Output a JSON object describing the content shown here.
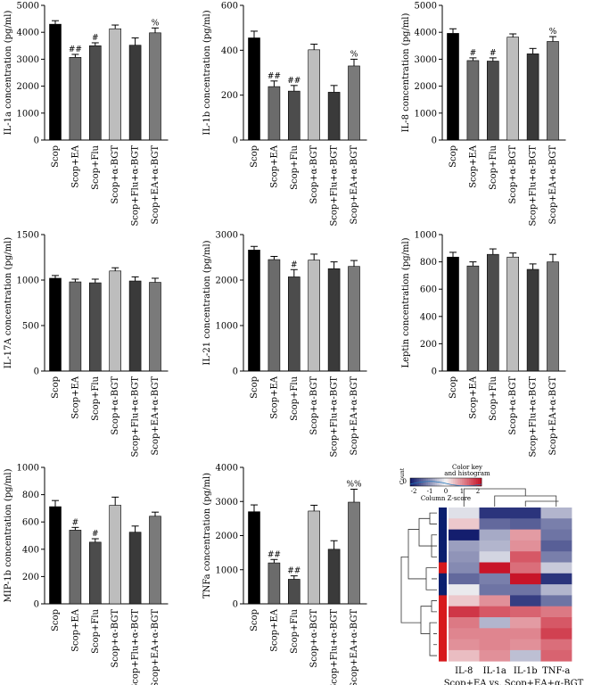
{
  "chart_data": [
    {
      "type": "bar",
      "ylabel": "IL-1a concentration (pg/ml)",
      "ylim": [
        0,
        5000
      ],
      "ticks": [
        0,
        1000,
        2000,
        3000,
        4000,
        5000
      ],
      "categories": [
        "Scop",
        "Scop+EA",
        "Scop+Flu",
        "Scop+α-BGT",
        "Scop+Flu+α-BGT",
        "Scop+EA+α-BGT"
      ],
      "values": [
        4300,
        3070,
        3500,
        4130,
        3520,
        3980
      ],
      "errors": [
        130,
        110,
        110,
        140,
        270,
        180
      ],
      "marks": [
        "",
        "##",
        "#",
        "",
        "",
        "%"
      ]
    },
    {
      "type": "bar",
      "ylabel": "IL-1b concentration (pg/ml)",
      "ylim": [
        0,
        600
      ],
      "ticks": [
        0,
        200,
        400,
        600
      ],
      "categories": [
        "Scop",
        "Scop+EA",
        "Scop+Flu",
        "Scop+α-BGT",
        "Scop+Flu+α-BGT",
        "Scop+EA+α-BGT"
      ],
      "values": [
        455,
        238,
        218,
        402,
        213,
        330
      ],
      "errors": [
        30,
        25,
        25,
        25,
        30,
        30
      ],
      "marks": [
        "",
        "##",
        "##",
        "",
        "",
        "%"
      ]
    },
    {
      "type": "bar",
      "ylabel": "IL-8 concentration (pg/ml)",
      "ylim": [
        0,
        5000
      ],
      "ticks": [
        0,
        1000,
        2000,
        3000,
        4000,
        5000
      ],
      "categories": [
        "Scop",
        "Scop+EA",
        "Scop+Flu",
        "Scop+α-BGT",
        "Scop+Flu+α-BGT",
        "Scop+EA+α-BGT"
      ],
      "values": [
        3960,
        2950,
        2930,
        3820,
        3200,
        3660
      ],
      "errors": [
        170,
        100,
        120,
        120,
        200,
        180
      ],
      "marks": [
        "",
        "#",
        "#",
        "",
        "",
        "%"
      ]
    },
    {
      "type": "bar",
      "ylabel": "IL-17A concentration (pg/ml)",
      "ylim": [
        0,
        1500
      ],
      "ticks": [
        0,
        500,
        1000,
        1500
      ],
      "categories": [
        "Scop",
        "Scop+EA",
        "Scop+Flu",
        "Scop+α-BGT",
        "Scop+Flu+α-BGT",
        "Scop+EA+α-BGT"
      ],
      "values": [
        1020,
        980,
        970,
        1100,
        990,
        975
      ],
      "errors": [
        30,
        30,
        40,
        35,
        45,
        45
      ],
      "marks": [
        "",
        "",
        "",
        "",
        "",
        ""
      ]
    },
    {
      "type": "bar",
      "ylabel": "IL-21 concentration (pg/ml)",
      "ylim": [
        0,
        3000
      ],
      "ticks": [
        0,
        1000,
        2000,
        3000
      ],
      "categories": [
        "Scop",
        "Scop+EA",
        "Scop+Flu",
        "Scop+α-BGT",
        "Scop+Flu+α-BGT",
        "Scop+EA+α-BGT"
      ],
      "values": [
        2660,
        2450,
        2070,
        2440,
        2250,
        2300
      ],
      "errors": [
        80,
        70,
        160,
        130,
        150,
        130
      ],
      "marks": [
        "",
        "",
        "#",
        "",
        "",
        ""
      ]
    },
    {
      "type": "bar",
      "ylabel": "Leptin concentration (pg/ml)",
      "ylim": [
        0,
        1000
      ],
      "ticks": [
        0,
        200,
        400,
        600,
        800,
        1000
      ],
      "categories": [
        "Scop",
        "Scop+EA",
        "Scop+Flu",
        "Scop+α-BGT",
        "Scop+Flu+α-BGT",
        "Scop+EA+α-BGT"
      ],
      "values": [
        835,
        770,
        855,
        835,
        745,
        800
      ],
      "errors": [
        35,
        30,
        40,
        30,
        40,
        55
      ],
      "marks": [
        "",
        "",
        "",
        "",
        "",
        ""
      ]
    },
    {
      "type": "bar",
      "ylabel": "MIP-1b concentration (pg/ml)",
      "ylim": [
        0,
        1000
      ],
      "ticks": [
        0,
        200,
        400,
        600,
        800,
        1000
      ],
      "categories": [
        "Scop",
        "Scop+EA",
        "Scop+Flu",
        "Scop+α-BGT",
        "Scop+Flu+α-BGT",
        "Scop+EA+α-BGT"
      ],
      "values": [
        712,
        540,
        452,
        722,
        525,
        642
      ],
      "errors": [
        45,
        20,
        25,
        60,
        45,
        30
      ],
      "marks": [
        "",
        "#",
        "#",
        "",
        "",
        ""
      ]
    },
    {
      "type": "bar",
      "ylabel": "TNFa concentration (pg/ml)",
      "ylim": [
        0,
        4000
      ],
      "ticks": [
        0,
        1000,
        2000,
        3000,
        4000
      ],
      "categories": [
        "Scop",
        "Scop+EA",
        "Scop+Flu",
        "Scop+α-BGT",
        "Scop+Flu+α-BGT",
        "Scop+EA+α-BGT"
      ],
      "values": [
        2700,
        1200,
        720,
        2720,
        1600,
        2980
      ],
      "errors": [
        200,
        100,
        100,
        170,
        250,
        380
      ],
      "marks": [
        "",
        "##",
        "##",
        "",
        "",
        "%%"
      ]
    },
    {
      "type": "heatmap",
      "title": "Scop+EA vs. Scop+EA+α-BGT",
      "columns": [
        "IL-8",
        "IL-1a",
        "IL-1b",
        "TNF-a"
      ],
      "colorkey": {
        "title": "Color key",
        "subtitle": "and histogram",
        "ylabel": "Count",
        "ycount": "0",
        "xlabel": "Column Z-score",
        "ticks": [
          -2,
          -1,
          0,
          1,
          2
        ]
      },
      "row_groups": [
        "Scop+EA",
        "Scop+EA",
        "Scop+EA",
        "Scop+EA",
        "Scop+EA",
        "Scop+EA+α-BGT",
        "Scop+EA",
        "Scop+EA",
        "Scop+EA+α-BGT",
        "Scop+EA+α-BGT",
        "Scop+EA+α-BGT",
        "Scop+EA+α-BGT",
        "Scop+EA+α-BGT",
        "Scop+EA+α-BGT"
      ],
      "group_colors": {
        "Scop+EA": "#0b1f6e",
        "Scop+EA+α-BGT": "#d7191c"
      },
      "z": [
        [
          -0.2,
          -1.8,
          -1.8,
          -0.6
        ],
        [
          0.4,
          -1.3,
          -1.4,
          -1.1
        ],
        [
          -2.0,
          -0.7,
          0.8,
          -1.2
        ],
        [
          -0.8,
          -0.6,
          0.9,
          -1.4
        ],
        [
          -0.9,
          -0.3,
          1.4,
          -1.1
        ],
        [
          -1.0,
          2.0,
          1.2,
          -0.4
        ],
        [
          -1.3,
          -1.1,
          2.0,
          -1.8
        ],
        [
          -0.1,
          -1.2,
          -1.2,
          -0.6
        ],
        [
          0.4,
          0.9,
          -1.7,
          -1.2
        ],
        [
          1.7,
          1.4,
          1.3,
          1.1
        ],
        [
          1.1,
          -0.6,
          0.8,
          1.4
        ],
        [
          1.0,
          1.0,
          1.0,
          1.6
        ],
        [
          0.9,
          1.0,
          0.9,
          1.2
        ],
        [
          0.5,
          0.9,
          -0.5,
          1.3
        ]
      ]
    }
  ]
}
